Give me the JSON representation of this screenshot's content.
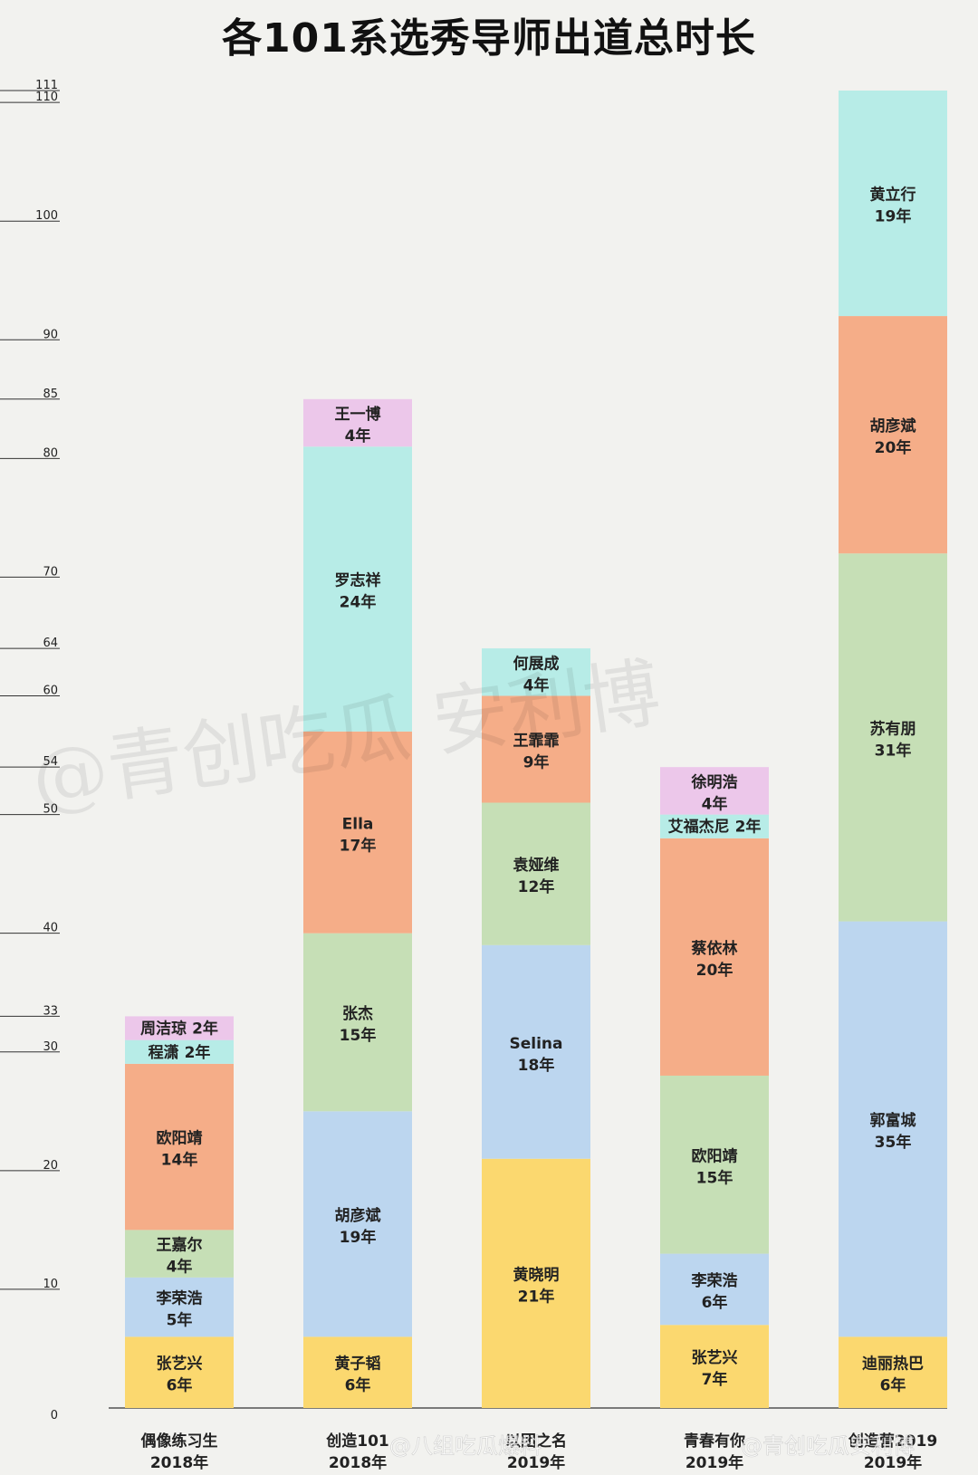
{
  "chart_data": {
    "type": "bar",
    "stacked": true,
    "title": "各101系选秀导师出道总时长",
    "y_ticks": [
      0,
      10,
      20,
      30,
      33,
      40,
      50,
      54,
      60,
      64,
      70,
      80,
      85,
      90,
      100,
      110,
      111
    ],
    "ylim": [
      0,
      111
    ],
    "grid": false,
    "categories": [
      {
        "name": "偶像练习生",
        "year": "2018年",
        "total": 33
      },
      {
        "name": "创造101",
        "year": "2018年",
        "total": 85
      },
      {
        "name": "以团之名",
        "year": "2019年",
        "total": 64
      },
      {
        "name": "青春有你",
        "year": "2019年",
        "total": 54
      },
      {
        "name": "创造营2019",
        "year": "2019年",
        "total": 111
      }
    ],
    "stacks": [
      [
        {
          "name": "张艺兴",
          "value": 6,
          "label": "6年",
          "color": "#fbd86f"
        },
        {
          "name": "李荣浩",
          "value": 5,
          "label": "5年",
          "color": "#bcd6ef"
        },
        {
          "name": "王嘉尔",
          "value": 4,
          "label": "4年",
          "color": "#c6dfb6"
        },
        {
          "name": "欧阳靖",
          "value": 14,
          "label": "14年",
          "color": "#f5ad88"
        },
        {
          "name": "程潇",
          "value": 2,
          "label": "2年",
          "color": "#b7ece7",
          "inline": true
        },
        {
          "name": "周洁琼",
          "value": 2,
          "label": "2年",
          "color": "#ecc7ea",
          "inline": true
        }
      ],
      [
        {
          "name": "黄子韬",
          "value": 6,
          "label": "6年",
          "color": "#fbd86f"
        },
        {
          "name": "胡彦斌",
          "value": 19,
          "label": "19年",
          "color": "#bcd6ef"
        },
        {
          "name": "张杰",
          "value": 15,
          "label": "15年",
          "color": "#c6dfb6"
        },
        {
          "name": "Ella",
          "value": 17,
          "label": "17年",
          "color": "#f5ad88"
        },
        {
          "name": "罗志祥",
          "value": 24,
          "label": "24年",
          "color": "#b7ece7"
        },
        {
          "name": "王一博",
          "value": 4,
          "label": "4年",
          "color": "#ecc7ea"
        }
      ],
      [
        {
          "name": "黄晓明",
          "value": 21,
          "label": "21年",
          "color": "#fbd86f"
        },
        {
          "name": "Selina",
          "value": 18,
          "label": "18年",
          "color": "#bcd6ef"
        },
        {
          "name": "袁娅维",
          "value": 12,
          "label": "12年",
          "color": "#c6dfb6"
        },
        {
          "name": "王霏霏",
          "value": 9,
          "label": "9年",
          "color": "#f5ad88"
        },
        {
          "name": "何展成",
          "value": 4,
          "label": "4年",
          "color": "#b7ece7"
        }
      ],
      [
        {
          "name": "张艺兴",
          "value": 7,
          "label": "7年",
          "color": "#fbd86f"
        },
        {
          "name": "李荣浩",
          "value": 6,
          "label": "6年",
          "color": "#bcd6ef"
        },
        {
          "name": "欧阳靖",
          "value": 15,
          "label": "15年",
          "color": "#c6dfb6"
        },
        {
          "name": "蔡依林",
          "value": 20,
          "label": "20年",
          "color": "#f5ad88"
        },
        {
          "name": "艾福杰尼",
          "value": 2,
          "label": "2年",
          "color": "#b7ece7",
          "inline": true
        },
        {
          "name": "徐明浩",
          "value": 4,
          "label": "4年",
          "color": "#ecc7ea"
        }
      ],
      [
        {
          "name": "迪丽热巴",
          "value": 6,
          "label": "6年",
          "color": "#fbd86f"
        },
        {
          "name": "郭富城",
          "value": 35,
          "label": "35年",
          "color": "#bcd6ef"
        },
        {
          "name": "苏有朋",
          "value": 31,
          "label": "31年",
          "color": "#c6dfb6"
        },
        {
          "name": "胡彦斌",
          "value": 20,
          "label": "20年",
          "color": "#f5ad88"
        },
        {
          "name": "黄立行",
          "value": 19,
          "label": "19年",
          "color": "#b7ece7"
        }
      ]
    ]
  },
  "watermarks": {
    "calligraphy": "@青创吃瓜 安利博",
    "weibo_1": "@八组吃瓜爆料",
    "weibo_2": "@青创吃瓜安利博"
  }
}
